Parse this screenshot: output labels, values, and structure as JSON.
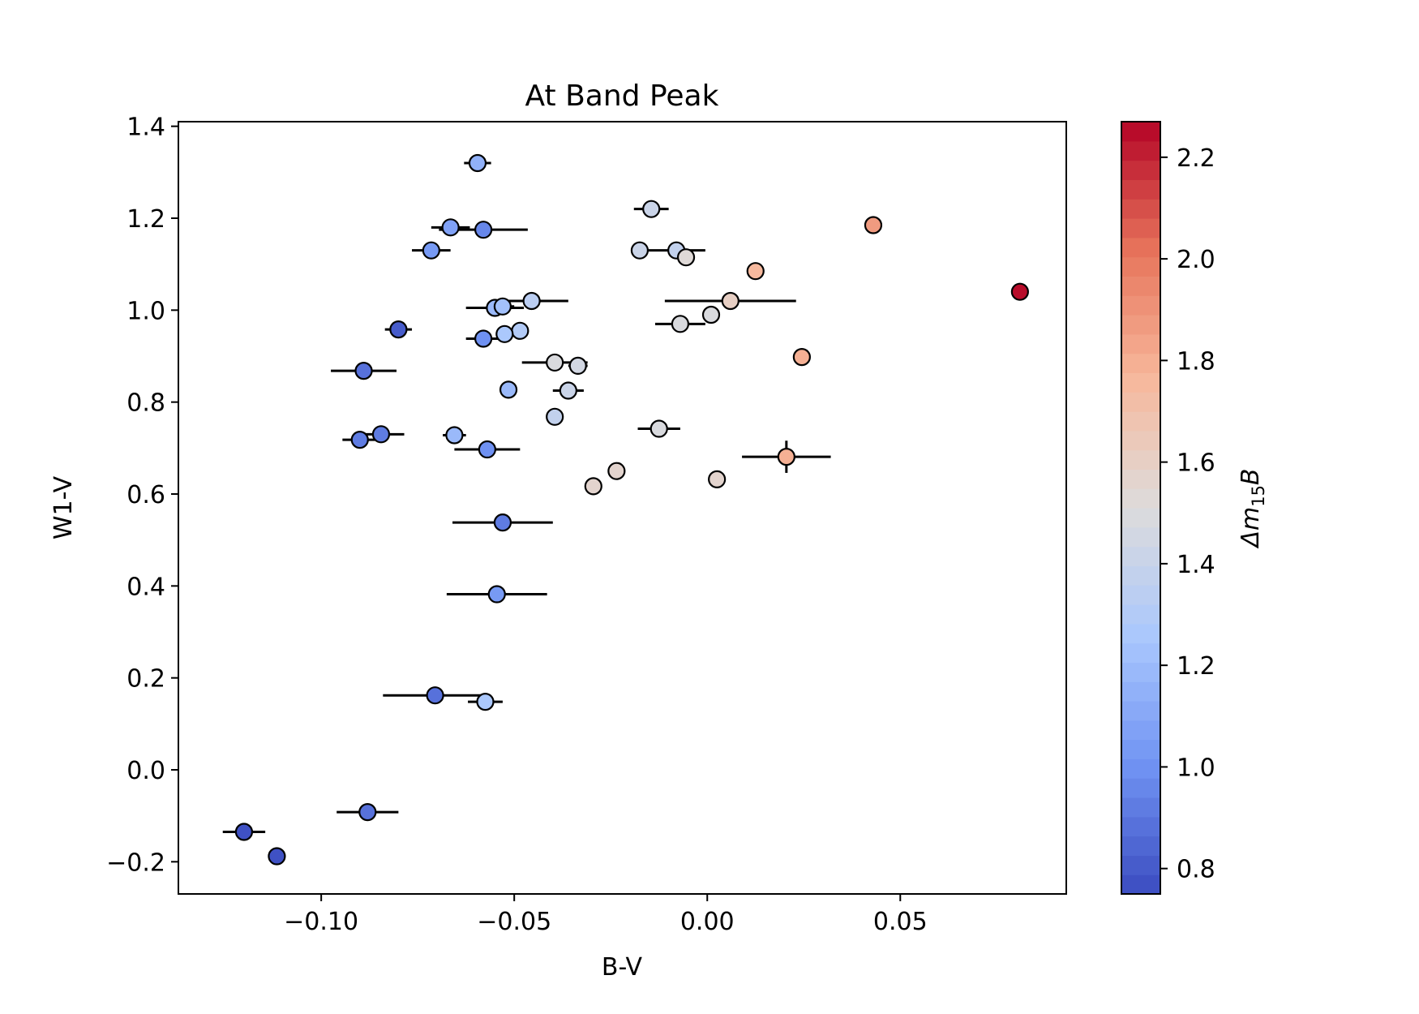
{
  "chart_data": {
    "type": "scatter",
    "title": "At Band Peak",
    "xlabel": "B-V",
    "ylabel": "W1-V",
    "xlim": [
      -0.137,
      0.093
    ],
    "ylim": [
      -0.27,
      1.41
    ],
    "x_ticks": [
      -0.1,
      -0.05,
      0.0,
      0.05
    ],
    "x_tick_labels": [
      "−0.10",
      "−0.05",
      "0.00",
      "0.05"
    ],
    "y_ticks": [
      -0.2,
      0.0,
      0.2,
      0.4,
      0.6,
      0.8,
      1.0,
      1.2,
      1.4
    ],
    "y_tick_labels": [
      "−0.2",
      "0.0",
      "0.2",
      "0.4",
      "0.6",
      "0.8",
      "1.0",
      "1.2",
      "1.4"
    ],
    "grid": false,
    "legend": "none",
    "colorbar": {
      "label": "Δm₁₅B",
      "label_main": "Δm",
      "label_sub": "15",
      "label_end": "B",
      "range": [
        0.75,
        2.27
      ],
      "ticks": [
        0.8,
        1.0,
        1.2,
        1.4,
        1.6,
        1.8,
        2.0,
        2.2
      ],
      "tick_labels": [
        "0.8",
        "1.0",
        "1.2",
        "1.4",
        "1.6",
        "1.8",
        "2.0",
        "2.2"
      ],
      "colormap": "coolwarm",
      "levels": 40,
      "stops": [
        "#3b4cc0",
        "#7093f3",
        "#aac7fd",
        "#dddcdc",
        "#f7b89c",
        "#e7745b",
        "#b40426"
      ]
    },
    "points": [
      {
        "x": -0.0595,
        "y": 1.32,
        "xerr": 0.0035,
        "yerr": 0.0,
        "c": 1.16
      },
      {
        "x": -0.0145,
        "y": 1.22,
        "xerr": 0.0045,
        "yerr": 0.0,
        "c": 1.4
      },
      {
        "x": -0.0665,
        "y": 1.18,
        "xerr": 0.005,
        "yerr": 0.0,
        "c": 1.06
      },
      {
        "x": -0.058,
        "y": 1.175,
        "xerr": 0.0115,
        "yerr": 0.0,
        "c": 0.97
      },
      {
        "x": 0.043,
        "y": 1.185,
        "xerr": 0.0,
        "yerr": 0.0,
        "c": 1.88
      },
      {
        "x": -0.0715,
        "y": 1.13,
        "xerr": 0.005,
        "yerr": 0.0,
        "c": 1.03
      },
      {
        "x": -0.0175,
        "y": 1.13,
        "xerr": 0.0,
        "yerr": 0.0,
        "c": 1.4
      },
      {
        "x": -0.008,
        "y": 1.13,
        "xerr": 0.0075,
        "yerr": 0.0,
        "c": 1.36
      },
      {
        "x": -0.0055,
        "y": 1.115,
        "xerr": 0.0,
        "yerr": 0.0,
        "c": 1.52
      },
      {
        "x": 0.0125,
        "y": 1.085,
        "xerr": 0.0,
        "yerr": 0.0,
        "c": 1.76
      },
      {
        "x": 0.081,
        "y": 1.04,
        "xerr": 0.002,
        "yerr": 0.0,
        "c": 2.26
      },
      {
        "x": -0.0455,
        "y": 1.02,
        "xerr": 0.0095,
        "yerr": 0.0,
        "c": 1.32
      },
      {
        "x": 0.006,
        "y": 1.02,
        "xerr": 0.017,
        "yerr": 0.0,
        "c": 1.62
      },
      {
        "x": -0.055,
        "y": 1.005,
        "xerr": 0.0075,
        "yerr": 0.0,
        "c": 1.18
      },
      {
        "x": -0.053,
        "y": 1.008,
        "xerr": 0.003,
        "yerr": 0.0,
        "c": 1.23
      },
      {
        "x": 0.001,
        "y": 0.99,
        "xerr": 0.0,
        "yerr": 0.0,
        "c": 1.5
      },
      {
        "x": -0.007,
        "y": 0.97,
        "xerr": 0.0065,
        "yerr": 0.0,
        "c": 1.48
      },
      {
        "x": -0.08,
        "y": 0.958,
        "xerr": 0.0035,
        "yerr": 0.0,
        "c": 0.82
      },
      {
        "x": -0.0485,
        "y": 0.955,
        "xerr": 0.0,
        "yerr": 0.0,
        "c": 1.3
      },
      {
        "x": -0.0525,
        "y": 0.948,
        "xerr": 0.0,
        "yerr": 0.0,
        "c": 1.28
      },
      {
        "x": -0.058,
        "y": 0.938,
        "xerr": 0.0045,
        "yerr": 0.0,
        "c": 0.98
      },
      {
        "x": 0.0245,
        "y": 0.898,
        "xerr": 0.0,
        "yerr": 0.0,
        "c": 1.8
      },
      {
        "x": -0.0395,
        "y": 0.886,
        "xerr": 0.0085,
        "yerr": 0.0,
        "c": 1.48
      },
      {
        "x": -0.0335,
        "y": 0.879,
        "xerr": 0.0025,
        "yerr": 0.0,
        "c": 1.45
      },
      {
        "x": -0.089,
        "y": 0.868,
        "xerr": 0.0085,
        "yerr": 0.0,
        "c": 0.9
      },
      {
        "x": -0.0515,
        "y": 0.827,
        "xerr": 0.0,
        "yerr": 0.0,
        "c": 1.18
      },
      {
        "x": -0.036,
        "y": 0.825,
        "xerr": 0.004,
        "yerr": 0.0,
        "c": 1.4
      },
      {
        "x": -0.0395,
        "y": 0.768,
        "xerr": 0.0,
        "yerr": 0.0,
        "c": 1.38
      },
      {
        "x": -0.0125,
        "y": 0.742,
        "xerr": 0.0055,
        "yerr": 0.0,
        "c": 1.5
      },
      {
        "x": -0.0655,
        "y": 0.728,
        "xerr": 0.003,
        "yerr": 0.0,
        "c": 1.2
      },
      {
        "x": -0.0845,
        "y": 0.73,
        "xerr": 0.006,
        "yerr": 0.0,
        "c": 0.93
      },
      {
        "x": -0.09,
        "y": 0.718,
        "xerr": 0.0045,
        "yerr": 0.0,
        "c": 0.92
      },
      {
        "x": -0.057,
        "y": 0.697,
        "xerr": 0.0085,
        "yerr": 0.0,
        "c": 0.98
      },
      {
        "x": 0.0205,
        "y": 0.681,
        "xerr": 0.0115,
        "yerr": 0.035,
        "c": 1.78
      },
      {
        "x": -0.0235,
        "y": 0.65,
        "xerr": 0.0,
        "yerr": 0.0,
        "c": 1.55
      },
      {
        "x": 0.0025,
        "y": 0.632,
        "xerr": 0.0,
        "yerr": 0.0,
        "c": 1.58
      },
      {
        "x": -0.0295,
        "y": 0.617,
        "xerr": 0.0,
        "yerr": 0.0,
        "c": 1.57
      },
      {
        "x": -0.053,
        "y": 0.538,
        "xerr": 0.013,
        "yerr": 0.0,
        "c": 0.93
      },
      {
        "x": -0.0545,
        "y": 0.382,
        "xerr": 0.013,
        "yerr": 0.0,
        "c": 1.04
      },
      {
        "x": -0.0705,
        "y": 0.162,
        "xerr": 0.0135,
        "yerr": 0.0,
        "c": 0.9
      },
      {
        "x": -0.0575,
        "y": 0.148,
        "xerr": 0.0045,
        "yerr": 0.0,
        "c": 1.28
      },
      {
        "x": -0.088,
        "y": -0.092,
        "xerr": 0.008,
        "yerr": 0.0,
        "c": 0.9
      },
      {
        "x": -0.12,
        "y": -0.135,
        "xerr": 0.0055,
        "yerr": 0.0,
        "c": 0.76
      },
      {
        "x": -0.1115,
        "y": -0.188,
        "xerr": 0.0,
        "yerr": 0.0,
        "c": 0.78
      }
    ]
  }
}
